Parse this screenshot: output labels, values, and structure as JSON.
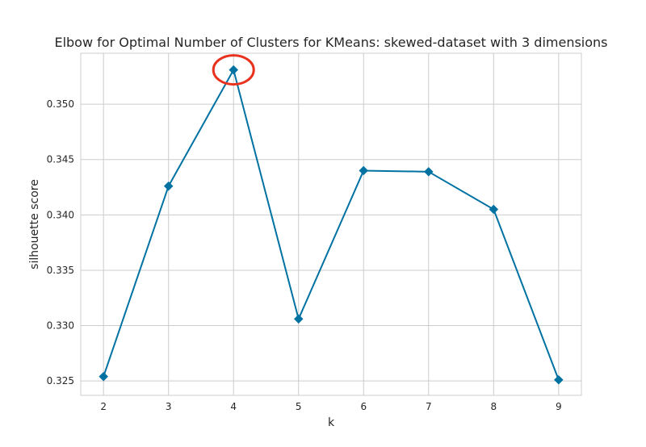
{
  "chart_data": {
    "type": "line",
    "title": "Elbow for Optimal Number of Clusters for KMeans: skewed-dataset with 3 dimensions",
    "xlabel": "k",
    "ylabel": "silhouette score",
    "x": [
      2,
      3,
      4,
      5,
      6,
      7,
      8,
      9
    ],
    "series": [
      {
        "values": [
          0.3254,
          0.3426,
          0.3531,
          0.3306,
          0.344,
          0.3439,
          0.3405,
          0.3251
        ],
        "color": "#0072a2",
        "marker": "diamond"
      }
    ],
    "xlim": [
      1.65,
      9.35
    ],
    "ylim": [
      0.3237,
      0.3546
    ],
    "xticks": [
      "2",
      "3",
      "4",
      "5",
      "6",
      "7",
      "8",
      "9"
    ],
    "yticks": [
      "0.325",
      "0.330",
      "0.335",
      "0.340",
      "0.345",
      "0.350"
    ],
    "grid": true,
    "highlight": {
      "x": 4,
      "shape": "ellipse",
      "color": "#e8321d"
    }
  }
}
